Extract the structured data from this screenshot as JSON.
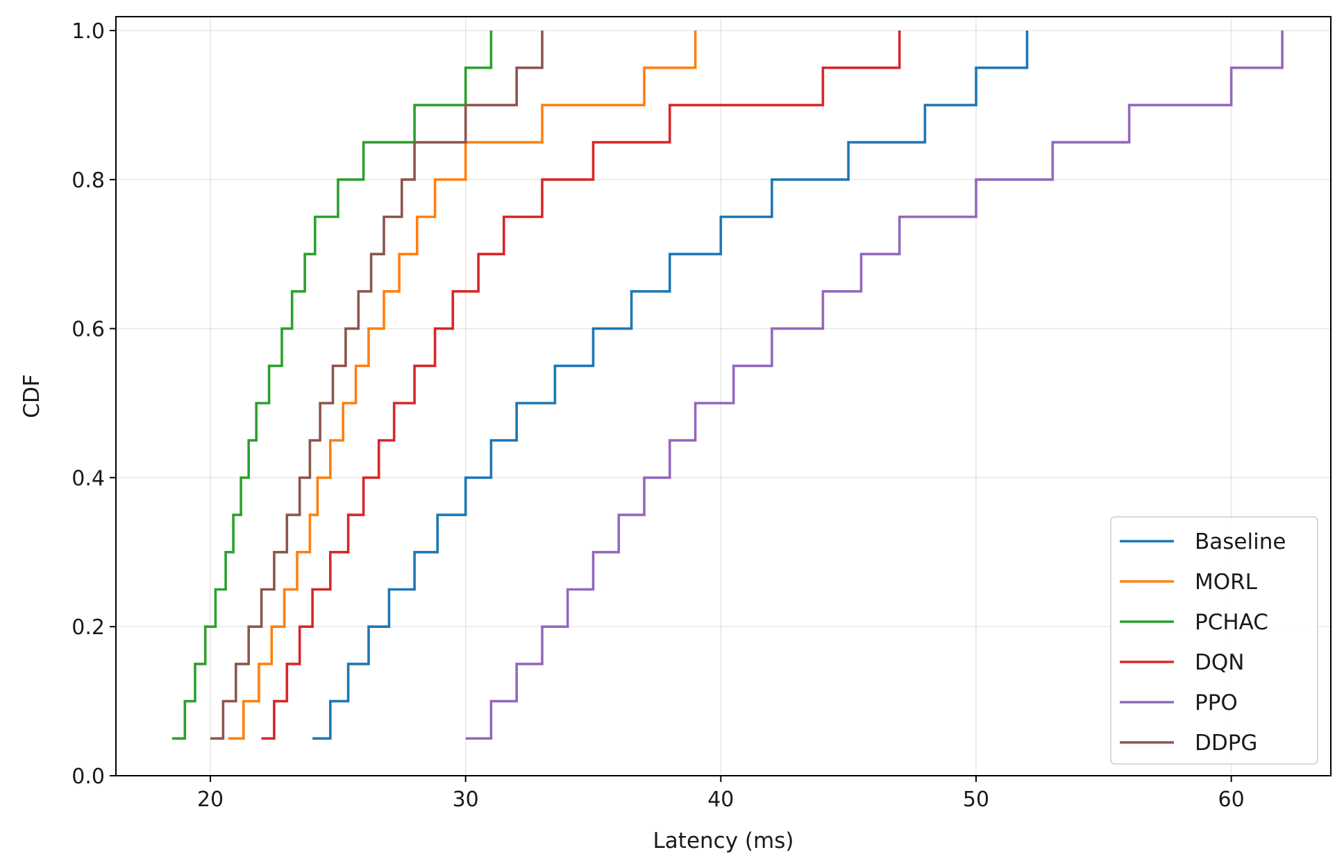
{
  "chart_data": {
    "type": "line",
    "step": "post",
    "title": "",
    "xlabel": "Latency (ms)",
    "ylabel": "CDF",
    "xlim": [
      16.3,
      63.9
    ],
    "ylim": [
      0.0,
      1.0
    ],
    "xticks": [
      20,
      30,
      40,
      50,
      60
    ],
    "yticks": [
      0.0,
      0.2,
      0.4,
      0.6,
      0.8,
      1.0
    ],
    "xtick_labels": [
      "20",
      "30",
      "40",
      "50",
      "60"
    ],
    "ytick_labels": [
      "0.0",
      "0.2",
      "0.4",
      "0.6",
      "0.8",
      "1.0"
    ],
    "grid": true,
    "legend_position": "lower-right",
    "series": [
      {
        "name": "Baseline",
        "color": "#1f77b4",
        "x": [
          24.0,
          24.7,
          25.4,
          26.2,
          27.0,
          28.0,
          28.9,
          30.0,
          31.0,
          32.0,
          33.5,
          35.0,
          36.5,
          38.0,
          40.0,
          42.0,
          45.0,
          48.0,
          50.0,
          52.0
        ],
        "y": [
          0.05,
          0.1,
          0.15,
          0.2,
          0.25,
          0.3,
          0.35,
          0.4,
          0.45,
          0.5,
          0.55,
          0.6,
          0.65,
          0.7,
          0.75,
          0.8,
          0.85,
          0.9,
          0.95,
          1.0
        ]
      },
      {
        "name": "MORL",
        "color": "#ff7f0e",
        "x": [
          20.7,
          21.3,
          21.9,
          22.4,
          22.9,
          23.4,
          23.9,
          24.2,
          24.7,
          25.2,
          25.7,
          26.2,
          26.8,
          27.4,
          28.1,
          28.8,
          30.0,
          33.0,
          37.0,
          39.0
        ],
        "y": [
          0.05,
          0.1,
          0.15,
          0.2,
          0.25,
          0.3,
          0.35,
          0.4,
          0.45,
          0.5,
          0.55,
          0.6,
          0.65,
          0.7,
          0.75,
          0.8,
          0.85,
          0.9,
          0.95,
          1.0
        ]
      },
      {
        "name": "PCHAC",
        "color": "#2ca02c",
        "x": [
          18.5,
          19.0,
          19.4,
          19.8,
          20.2,
          20.6,
          20.9,
          21.2,
          21.5,
          21.8,
          22.3,
          22.8,
          23.2,
          23.7,
          24.1,
          25.0,
          26.0,
          28.0,
          30.0,
          31.0
        ],
        "y": [
          0.05,
          0.1,
          0.15,
          0.2,
          0.25,
          0.3,
          0.35,
          0.4,
          0.45,
          0.5,
          0.55,
          0.6,
          0.65,
          0.7,
          0.75,
          0.8,
          0.85,
          0.9,
          0.95,
          1.0
        ]
      },
      {
        "name": "DQN",
        "color": "#d62728",
        "x": [
          22.0,
          22.5,
          23.0,
          23.5,
          24.0,
          24.7,
          25.4,
          26.0,
          26.6,
          27.2,
          28.0,
          28.8,
          29.5,
          30.5,
          31.5,
          33.0,
          35.0,
          38.0,
          44.0,
          47.0
        ],
        "y": [
          0.05,
          0.1,
          0.15,
          0.2,
          0.25,
          0.3,
          0.35,
          0.4,
          0.45,
          0.5,
          0.55,
          0.6,
          0.65,
          0.7,
          0.75,
          0.8,
          0.85,
          0.9,
          0.95,
          1.0
        ]
      },
      {
        "name": "PPO",
        "color": "#9467bd",
        "x": [
          30.0,
          31.0,
          32.0,
          33.0,
          34.0,
          35.0,
          36.0,
          37.0,
          38.0,
          39.0,
          40.5,
          42.0,
          44.0,
          45.5,
          47.0,
          50.0,
          53.0,
          56.0,
          60.0,
          62.0
        ],
        "y": [
          0.05,
          0.1,
          0.15,
          0.2,
          0.25,
          0.3,
          0.35,
          0.4,
          0.45,
          0.5,
          0.55,
          0.6,
          0.65,
          0.7,
          0.75,
          0.8,
          0.85,
          0.9,
          0.95,
          1.0
        ]
      },
      {
        "name": "DDPG",
        "color": "#8c564b",
        "x": [
          20.0,
          20.5,
          21.0,
          21.5,
          22.0,
          22.5,
          23.0,
          23.5,
          23.9,
          24.3,
          24.8,
          25.3,
          25.8,
          26.3,
          26.8,
          27.5,
          28.0,
          30.0,
          32.0,
          33.0
        ],
        "y": [
          0.05,
          0.1,
          0.15,
          0.2,
          0.25,
          0.3,
          0.35,
          0.4,
          0.45,
          0.5,
          0.55,
          0.6,
          0.65,
          0.7,
          0.75,
          0.8,
          0.85,
          0.9,
          0.95,
          1.0
        ]
      }
    ]
  }
}
